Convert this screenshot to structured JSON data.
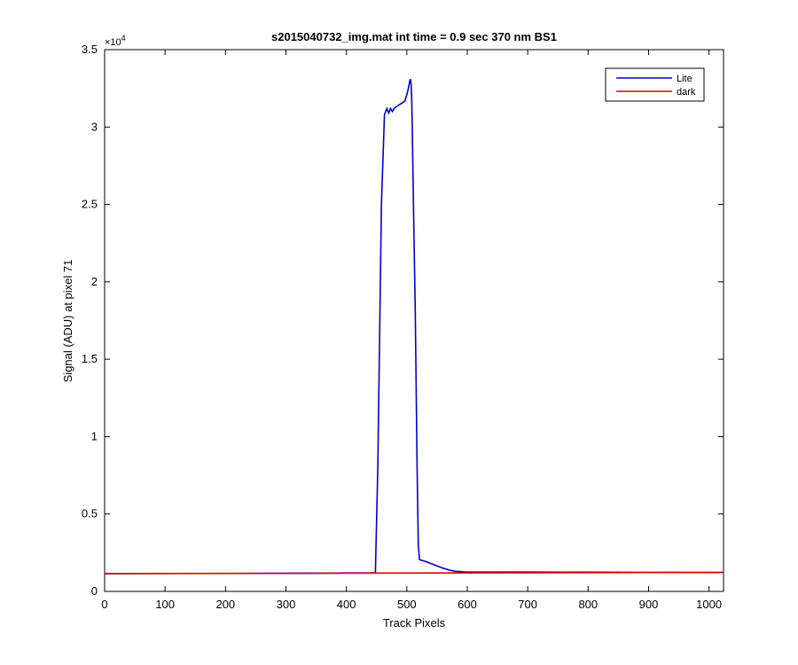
{
  "chart_data": {
    "type": "line",
    "title": "s2015040732_img.mat int time = 0.9 sec  370 nm BS1",
    "xlabel": "Track Pixels",
    "ylabel": "Signal (ADU) at pixel 71",
    "y_exponent_label": "×10",
    "y_exponent_power": "4",
    "xlim": [
      0,
      1024
    ],
    "ylim": [
      0,
      35000
    ],
    "x_ticks": [
      0,
      100,
      200,
      300,
      400,
      500,
      600,
      700,
      800,
      900,
      1000
    ],
    "x_tick_labels": [
      "0",
      "100",
      "200",
      "300",
      "400",
      "500",
      "600",
      "700",
      "800",
      "900",
      "1000"
    ],
    "y_ticks": [
      0,
      5000,
      10000,
      15000,
      20000,
      25000,
      30000,
      35000
    ],
    "y_tick_labels": [
      "0",
      "0.5",
      "1",
      "1.5",
      "2",
      "2.5",
      "3",
      "3.5"
    ],
    "grid": false,
    "legend_position": "top-right",
    "series": [
      {
        "name": "Lite",
        "color": "#0000cc",
        "x": [
          0,
          100,
          200,
          300,
          400,
          440,
          448,
          452,
          458,
          463,
          467,
          470,
          473,
          476,
          479,
          482,
          486,
          490,
          494,
          497,
          500,
          502,
          504,
          505,
          506,
          507,
          508,
          509,
          511,
          514,
          517,
          519,
          521,
          530,
          540,
          550,
          560,
          570,
          580,
          600,
          700,
          800,
          900,
          1024
        ],
        "y": [
          1150,
          1160,
          1160,
          1170,
          1190,
          1200,
          1210,
          8000,
          25000,
          30800,
          31200,
          30900,
          31200,
          31000,
          31200,
          31300,
          31400,
          31500,
          31600,
          31700,
          32100,
          32400,
          32800,
          33000,
          33100,
          32800,
          32000,
          30000,
          25000,
          18000,
          8000,
          3000,
          2050,
          1950,
          1800,
          1650,
          1500,
          1380,
          1300,
          1250,
          1250,
          1240,
          1230,
          1220
        ]
      },
      {
        "name": "dark",
        "color": "#dd0000",
        "x": [
          0,
          1024
        ],
        "y": [
          1150,
          1230
        ]
      }
    ]
  }
}
